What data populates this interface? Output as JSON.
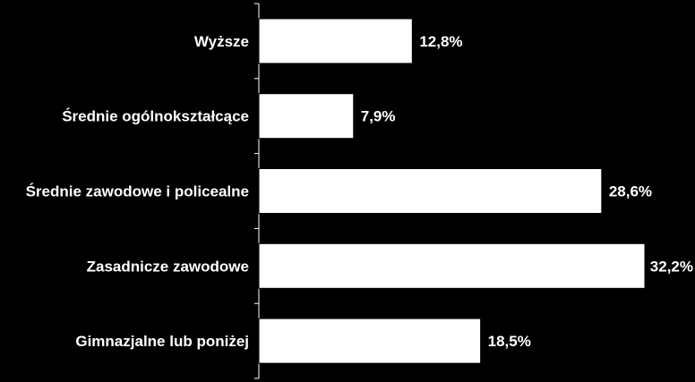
{
  "chart_data": {
    "type": "bar",
    "orientation": "horizontal",
    "categories": [
      "Wyższe",
      "Średnie ogólnokształcące",
      "Średnie zawodowe i policealne",
      "Zasadnicze zawodowe",
      "Gimnazjalne lub poniżej"
    ],
    "values": [
      12.8,
      7.9,
      28.6,
      32.2,
      18.5
    ],
    "value_labels": [
      "12,8%",
      "7,9%",
      "28,6%",
      "32,2%",
      "18,5%"
    ],
    "title": "",
    "xlabel": "",
    "ylabel": "",
    "xlim": [
      0,
      32.2
    ],
    "grid": false,
    "colors": {
      "background": "#000000",
      "bar_fill": "#ffffff",
      "bar_stroke": "#000000",
      "text": "#ffffff",
      "axis": "#ffffff"
    }
  }
}
